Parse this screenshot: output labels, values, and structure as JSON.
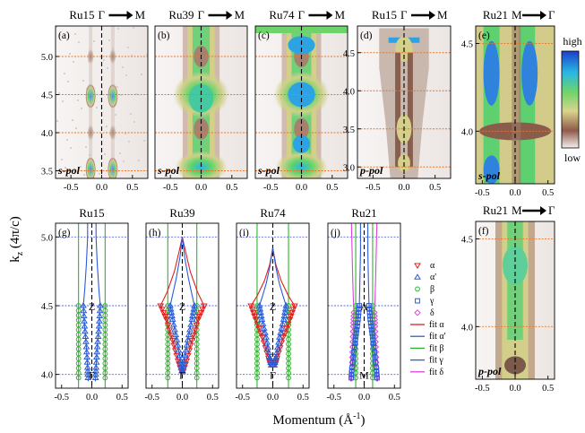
{
  "colorbar": {
    "high": "high",
    "low": "low"
  },
  "axis": {
    "ylabel": "k",
    "ylabel_sub": "z",
    "ylabel_unit": " (4π/c)",
    "xlabel": "Momentum (Å",
    "xlabel_sup": "-1",
    "xlabel_close": ")"
  },
  "colors": {
    "alpha": "#e02020",
    "alpha_prime": "#2a5cd8",
    "beta": "#2fb52f",
    "gamma": "#2a5cd8",
    "delta": "#e040e0",
    "orange_line": "#e8782a",
    "blue_line": "#5a6ae0"
  },
  "legend": [
    {
      "key": "alpha",
      "marker": "tri-down",
      "label": "α"
    },
    {
      "key": "alpha_prime",
      "marker": "tri-up",
      "label": "α'"
    },
    {
      "key": "beta",
      "marker": "circle",
      "label": "β"
    },
    {
      "key": "gamma",
      "marker": "square",
      "label": "γ"
    },
    {
      "key": "delta",
      "marker": "diamond",
      "label": "δ"
    },
    {
      "key": "alpha",
      "marker": "line",
      "label": "fit α"
    },
    {
      "key": "alpha_prime",
      "marker": "line",
      "label": "fit α'"
    },
    {
      "key": "beta",
      "marker": "line",
      "label": "fit β"
    },
    {
      "key": "gamma",
      "marker": "line",
      "label": "fit γ"
    },
    {
      "key": "delta",
      "marker": "line",
      "label": "fit δ"
    }
  ],
  "chart_data": [
    {
      "id": "a",
      "type": "heatmap",
      "label": "(a)",
      "title": "Ru15",
      "direction": [
        "Γ",
        "M"
      ],
      "polarization": "s-pol",
      "xticks": [
        "-0.5",
        "0.0",
        "0.5"
      ],
      "yticks": [
        "3.5",
        "4.0",
        "4.5",
        "5.0"
      ],
      "xlim": [
        -0.75,
        0.75
      ],
      "ylim": [
        3.4,
        5.4
      ],
      "guides": [
        3.5,
        4.0,
        4.5,
        5.0
      ]
    },
    {
      "id": "b",
      "type": "heatmap",
      "label": "(b)",
      "title": "Ru39",
      "direction": [
        "Γ",
        "M"
      ],
      "polarization": "s-pol",
      "xticks": [
        "-0.5",
        "0.0",
        "0.5"
      ],
      "xlim": [
        -0.75,
        0.75
      ],
      "ylim": [
        3.4,
        5.4
      ],
      "guides": [
        3.5,
        4.0,
        4.5,
        5.0
      ]
    },
    {
      "id": "c",
      "type": "heatmap",
      "label": "(c)",
      "title": "Ru74",
      "direction": [
        "Γ",
        "M"
      ],
      "polarization": "s-pol",
      "xticks": [
        "-0.5",
        "0.0",
        "0.5"
      ],
      "xlim": [
        -0.75,
        0.75
      ],
      "ylim": [
        3.4,
        5.4
      ],
      "guides": [
        3.5,
        4.0,
        4.5,
        5.0
      ]
    },
    {
      "id": "d",
      "type": "heatmap",
      "label": "(d)",
      "title": "Ru15",
      "direction": [
        "Γ",
        "M"
      ],
      "polarization": "p-pol",
      "xticks": [
        "-0.5",
        "0.0",
        "0.5"
      ],
      "yticks": [
        "3.0",
        "3.5",
        "4.0",
        "4.5"
      ],
      "xlim": [
        -0.75,
        0.75
      ],
      "ylim": [
        2.85,
        4.85
      ],
      "guides": [
        3.0,
        3.5,
        4.0,
        4.5
      ]
    },
    {
      "id": "e",
      "type": "heatmap",
      "label": "(e)",
      "title": "Ru21",
      "direction": [
        "M",
        "Γ"
      ],
      "polarization": "s-pol",
      "xticks": [
        "-0.5",
        "0.0",
        "0.5"
      ],
      "yticks": [
        "4.0",
        "4.5"
      ],
      "xlim": [
        -0.6,
        0.6
      ],
      "ylim": [
        3.7,
        4.6
      ],
      "guides": [
        4.0,
        4.5
      ]
    },
    {
      "id": "f",
      "type": "heatmap",
      "label": "(f)",
      "title": "Ru21",
      "direction": [
        "M",
        "Γ"
      ],
      "polarization": "p-pol",
      "xticks": [
        "-0.5",
        "0.0",
        "0.5"
      ],
      "yticks": [
        "4.0",
        "4.5"
      ],
      "xlim": [
        -0.6,
        0.6
      ],
      "ylim": [
        3.7,
        4.6
      ],
      "guides": [
        4.0,
        4.5
      ]
    },
    {
      "id": "g",
      "type": "line",
      "label": "(g)",
      "title": "Ru15",
      "xticks": [
        "-0.5",
        "0.0",
        "0.5"
      ],
      "yticks": [
        "4.0",
        "4.5",
        "5.0"
      ],
      "xlim": [
        -0.6,
        0.6
      ],
      "ylim": [
        3.9,
        5.1
      ],
      "guides": [
        4.0,
        4.5,
        5.0
      ],
      "points": {
        "Z": "Z",
        "G": "Γ"
      },
      "series": [
        {
          "key": "beta",
          "kind": "vertical",
          "x": [
            -0.22,
            0.22
          ],
          "ky": [
            3.9,
            5.1
          ]
        },
        {
          "key": "alpha_prime",
          "kind": "curve",
          "x": [
            0.07,
            0.07,
            0.09,
            0.12,
            0.14,
            0.12,
            0.09,
            0.07,
            0.06
          ],
          "ky": [
            5.1,
            5.0,
            4.8,
            4.6,
            4.5,
            4.35,
            4.2,
            4.05,
            3.95
          ]
        }
      ]
    },
    {
      "id": "h",
      "type": "line",
      "label": "(h)",
      "title": "Ru39",
      "xticks": [
        "-0.5",
        "0.0",
        "0.5"
      ],
      "xlim": [
        -0.6,
        0.6
      ],
      "ylim": [
        3.9,
        5.1
      ],
      "guides": [
        4.0,
        4.5,
        5.0
      ],
      "points": {
        "Z": "Z",
        "G": "Γ"
      },
      "series": [
        {
          "key": "beta",
          "kind": "vertical",
          "x": [
            -0.24,
            0.24
          ],
          "ky": [
            3.9,
            5.1
          ]
        },
        {
          "key": "alpha",
          "kind": "curve",
          "x": [
            0.0,
            0.05,
            0.13,
            0.25,
            0.36,
            0.26,
            0.16,
            0.07,
            0.0
          ],
          "ky": [
            5.0,
            4.9,
            4.75,
            4.6,
            4.5,
            4.4,
            4.25,
            4.1,
            4.0
          ]
        },
        {
          "key": "alpha_prime",
          "kind": "curve",
          "x": [
            0.0,
            0.04,
            0.1,
            0.16,
            0.2,
            0.16,
            0.09,
            0.03,
            0.0
          ],
          "ky": [
            5.0,
            4.85,
            4.7,
            4.58,
            4.5,
            4.4,
            4.25,
            4.1,
            4.0
          ]
        }
      ]
    },
    {
      "id": "i",
      "type": "line",
      "label": "(i)",
      "title": "Ru74",
      "xticks": [
        "-0.5",
        "0.0",
        "0.5"
      ],
      "xlim": [
        -0.6,
        0.6
      ],
      "ylim": [
        3.9,
        5.1
      ],
      "guides": [
        4.0,
        4.5,
        5.0
      ],
      "points": {
        "Z": "Z",
        "G": "Γ"
      },
      "series": [
        {
          "key": "beta",
          "kind": "vertical",
          "x": [
            -0.26,
            0.26
          ],
          "ky": [
            3.9,
            5.1
          ]
        },
        {
          "key": "alpha",
          "kind": "curve",
          "x": [
            0.0,
            0.05,
            0.14,
            0.26,
            0.36,
            0.28,
            0.17,
            0.07,
            0.03
          ],
          "ky": [
            4.92,
            4.8,
            4.68,
            4.57,
            4.5,
            4.4,
            4.27,
            4.12,
            4.06
          ]
        },
        {
          "key": "alpha_prime",
          "kind": "curve",
          "x": [
            0.0,
            0.05,
            0.11,
            0.17,
            0.22,
            0.18,
            0.11,
            0.05,
            0.02
          ],
          "ky": [
            4.92,
            4.78,
            4.66,
            4.57,
            4.5,
            4.4,
            4.27,
            4.12,
            4.05
          ]
        }
      ]
    },
    {
      "id": "j",
      "type": "line",
      "label": "(j)",
      "title": "Ru21",
      "xticks": [
        "-0.5",
        "0.0",
        "0.5"
      ],
      "xlim": [
        -0.6,
        0.6
      ],
      "ylim": [
        3.9,
        5.1
      ],
      "guides": [
        4.0,
        4.5,
        5.0
      ],
      "points": {
        "Z": "A",
        "G": "M"
      },
      "series": [
        {
          "key": "delta",
          "kind": "curve",
          "x": [
            0.21,
            0.2,
            0.19,
            0.18,
            0.17,
            0.18,
            0.19,
            0.2,
            0.21
          ],
          "ky": [
            5.1,
            4.9,
            4.7,
            4.55,
            4.45,
            4.35,
            4.2,
            4.05,
            3.95
          ]
        },
        {
          "key": "beta",
          "kind": "vertical",
          "x": [
            -0.14,
            0.14
          ],
          "ky": [
            3.9,
            5.1
          ]
        },
        {
          "key": "gamma",
          "kind": "curve",
          "x": [
            0.06,
            0.06,
            0.07,
            0.08,
            0.1,
            0.13,
            0.16,
            0.2,
            0.22
          ],
          "ky": [
            5.1,
            4.9,
            4.7,
            4.5,
            4.4,
            4.3,
            4.2,
            4.05,
            3.95
          ]
        }
      ]
    }
  ]
}
